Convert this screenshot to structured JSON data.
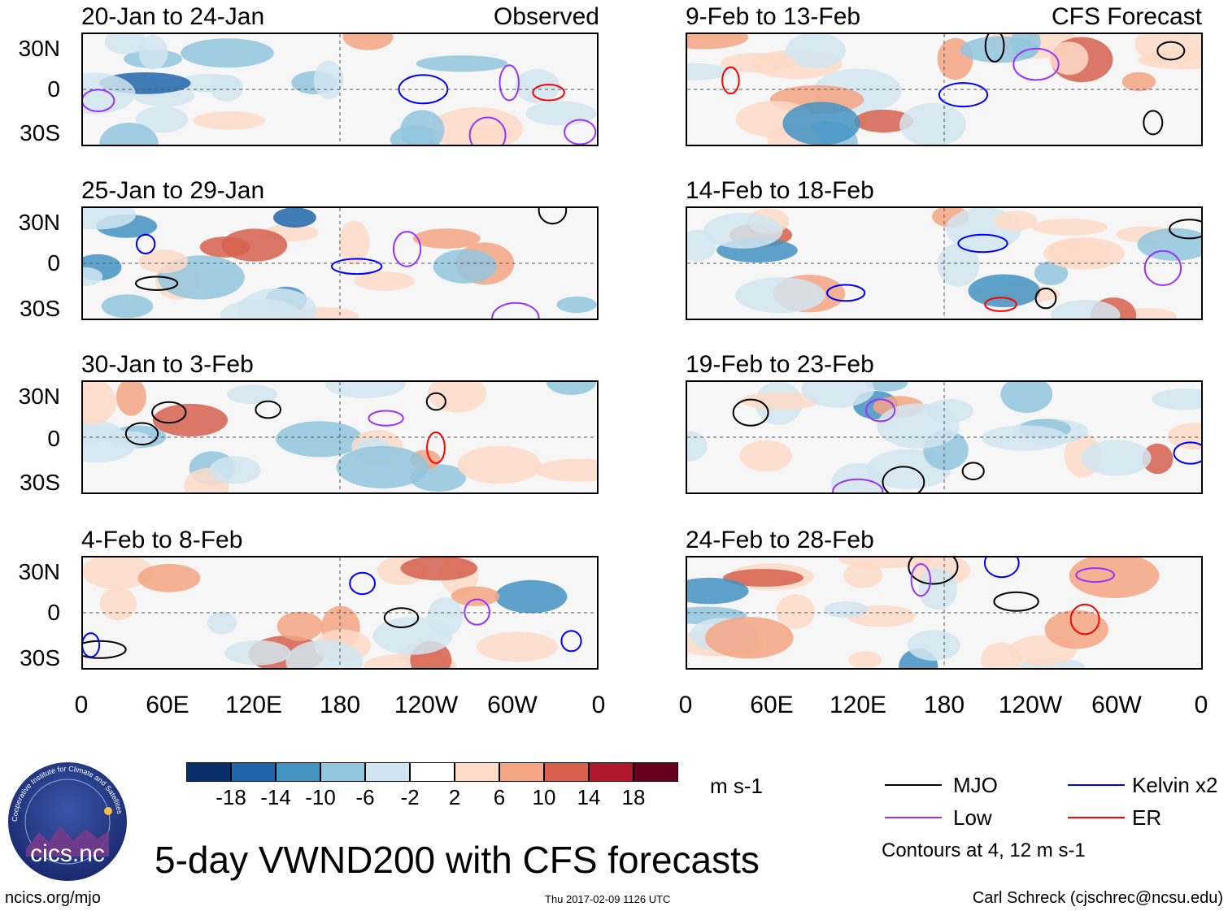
{
  "left_column": {
    "header_right": "Observed",
    "panels": [
      {
        "title": "20-Jan to 24-Jan"
      },
      {
        "title": "25-Jan to 29-Jan"
      },
      {
        "title": "30-Jan to 3-Feb"
      },
      {
        "title": "4-Feb to 8-Feb"
      }
    ]
  },
  "right_column": {
    "header_right": "CFS Forecast",
    "panels": [
      {
        "title": "9-Feb to 13-Feb"
      },
      {
        "title": "14-Feb to 18-Feb"
      },
      {
        "title": "19-Feb to 23-Feb"
      },
      {
        "title": "24-Feb to 28-Feb"
      }
    ]
  },
  "lat_labels": [
    "30N",
    "0",
    "30S"
  ],
  "lon_labels": [
    "0",
    "60E",
    "120E",
    "180",
    "120W",
    "60W",
    "0"
  ],
  "colorbar": {
    "colors": [
      "#08306b",
      "#2166ac",
      "#4393c3",
      "#92c5de",
      "#d1e5f0",
      "#ffffff",
      "#fddbc7",
      "#f4a582",
      "#d6604d",
      "#b2182b",
      "#67001f"
    ],
    "ticks": [
      "-18",
      "-14",
      "-10",
      "-6",
      "-2",
      "2",
      "6",
      "10",
      "14",
      "18"
    ],
    "units": "m s-1"
  },
  "legend": {
    "items": [
      {
        "label": "MJO",
        "color": "#000000"
      },
      {
        "label": "Kelvin x2",
        "color": "#0000ff"
      },
      {
        "label": "Low",
        "color": "#9933ff"
      },
      {
        "label": "ER",
        "color": "#ff0000"
      }
    ],
    "note": "Contours at 4, 12 m s-1"
  },
  "main_title": "5-day VWND200 with CFS forecasts",
  "logo_text": "cics.nc",
  "logo_ring_text": "Cooperative Institute for Climate and Satellites",
  "footer": {
    "left": "ncics.org/mjo",
    "center": "Thu 2017-02-09 1126 UTC",
    "right": "Carl Schreck (cjschrec@ncsu.edu)"
  }
}
